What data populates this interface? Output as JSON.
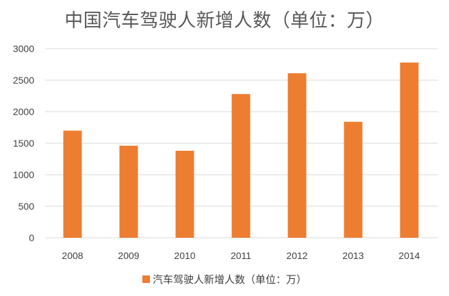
{
  "chart_data": {
    "type": "bar",
    "title": "中国汽车驾驶人新增人数（单位：万）",
    "categories": [
      "2008",
      "2009",
      "2010",
      "2011",
      "2012",
      "2013",
      "2014"
    ],
    "series": [
      {
        "name": "汽车驾驶人新增人数（单位：万）",
        "values": [
          1700,
          1460,
          1380,
          2280,
          2610,
          1840,
          2780
        ]
      }
    ],
    "ylim": [
      0,
      3000
    ],
    "yticks": [
      0,
      500,
      1000,
      1500,
      2000,
      2500,
      3000
    ],
    "grid": true,
    "legend": "bottom",
    "bar_color": "#ED7D31",
    "grid_color": "#D9D9D9"
  }
}
